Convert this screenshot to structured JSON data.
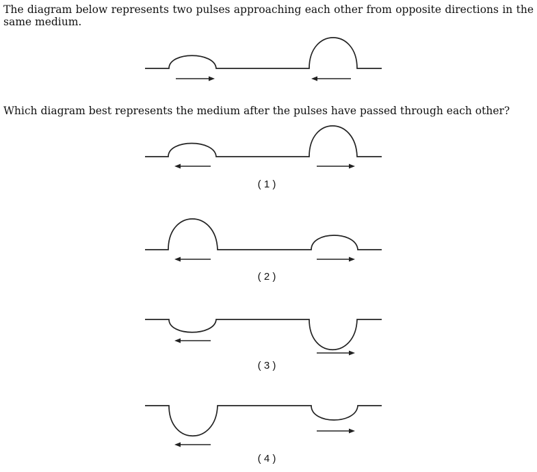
{
  "question": {
    "intro": "The diagram below represents two pulses approaching each other from opposite directions in the same medium.",
    "prompt": "Which diagram best represents the medium after the pulses have passed through each other?"
  },
  "choices": [
    {
      "label": "( 1 )"
    },
    {
      "label": "( 2 )"
    },
    {
      "label": "( 3 )"
    },
    {
      "label": "( 4 )"
    }
  ]
}
